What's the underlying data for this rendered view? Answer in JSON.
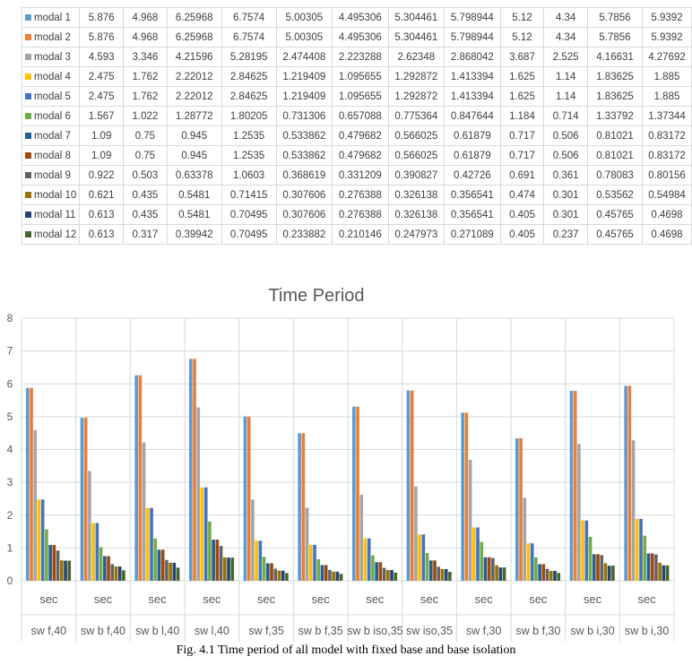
{
  "chart_data": {
    "type": "bar",
    "title": "Time Period",
    "xlabel": "",
    "ylabel": "",
    "ylim": [
      0,
      8
    ],
    "yticks": [
      "0",
      "1",
      "2",
      "3",
      "4",
      "5",
      "6",
      "7",
      "8"
    ],
    "grid": true,
    "legend": "table-left",
    "categories": [
      "sw f,40",
      "sw b f,40",
      "sw b l,40",
      "sw l,40",
      "sw  f,35",
      "sw b f,35",
      "sw b iso,35",
      "sw iso,35",
      "sw f,30",
      "sw b f,30",
      "sw b i,30",
      "sw b i,30"
    ],
    "subcategories": [
      "sec",
      "sec",
      "sec",
      "sec",
      "sec",
      "sec",
      "sec",
      "sec",
      "sec",
      "sec",
      "sec",
      "sec"
    ],
    "table_values": [
      [
        "5.876",
        "4.968",
        "6.25968",
        "6.7574",
        "5.00305",
        "4.495306",
        "5.304461",
        "5.798944",
        "5.12",
        "4.34",
        "5.7856",
        "5.9392"
      ],
      [
        "5.876",
        "4.968",
        "6.25968",
        "6.7574",
        "5.00305",
        "4.495306",
        "5.304461",
        "5.798944",
        "5.12",
        "4.34",
        "5.7856",
        "5.9392"
      ],
      [
        "4.593",
        "3.346",
        "4.21596",
        "5.28195",
        "2.474408",
        "2.223288",
        "2.62348",
        "2.868042",
        "3.687",
        "2.525",
        "4.16631",
        "4.27692"
      ],
      [
        "2.475",
        "1.762",
        "2.22012",
        "2.84625",
        "1.219409",
        "1.095655",
        "1.292872",
        "1.413394",
        "1.625",
        "1.14",
        "1.83625",
        "1.885"
      ],
      [
        "2.475",
        "1.762",
        "2.22012",
        "2.84625",
        "1.219409",
        "1.095655",
        "1.292872",
        "1.413394",
        "1.625",
        "1.14",
        "1.83625",
        "1.885"
      ],
      [
        "1.567",
        "1.022",
        "1.28772",
        "1.80205",
        "0.731306",
        "0.657088",
        "0.775364",
        "0.847644",
        "1.184",
        "0.714",
        "1.33792",
        "1.37344"
      ],
      [
        "1.09",
        "0.75",
        "0.945",
        "1.2535",
        "0.533862",
        "0.479682",
        "0.566025",
        "0.61879",
        "0.717",
        "0.506",
        "0.81021",
        "0.83172"
      ],
      [
        "1.09",
        "0.75",
        "0.945",
        "1.2535",
        "0.533862",
        "0.479682",
        "0.566025",
        "0.61879",
        "0.717",
        "0.506",
        "0.81021",
        "0.83172"
      ],
      [
        "0.922",
        "0.503",
        "0.63378",
        "1.0603",
        "0.368619",
        "0.331209",
        "0.390827",
        "0.42726",
        "0.691",
        "0.361",
        "0.78083",
        "0.80156"
      ],
      [
        "0.621",
        "0.435",
        "0.5481",
        "0.71415",
        "0.307606",
        "0.276388",
        "0.326138",
        "0.356541",
        "0.474",
        "0.301",
        "0.53562",
        "0.54984"
      ],
      [
        "0.613",
        "0.435",
        "0.5481",
        "0.70495",
        "0.307606",
        "0.276388",
        "0.326138",
        "0.356541",
        "0.405",
        "0.301",
        "0.45765",
        "0.4698"
      ],
      [
        "0.613",
        "0.317",
        "0.39942",
        "0.70495",
        "0.233882",
        "0.210146",
        "0.247973",
        "0.271089",
        "0.405",
        "0.237",
        "0.45765",
        "0.4698"
      ]
    ],
    "series": [
      {
        "name": "modal 1",
        "color": "#5b9bd5",
        "values": [
          5.876,
          4.968,
          6.25968,
          6.7574,
          5.00305,
          4.495306,
          5.304461,
          5.798944,
          5.12,
          4.34,
          5.7856,
          5.9392
        ]
      },
      {
        "name": "modal 2",
        "color": "#ed7d31",
        "values": [
          5.876,
          4.968,
          6.25968,
          6.7574,
          5.00305,
          4.495306,
          5.304461,
          5.798944,
          5.12,
          4.34,
          5.7856,
          5.9392
        ]
      },
      {
        "name": "modal 3",
        "color": "#a5a5a5",
        "values": [
          4.593,
          3.346,
          4.21596,
          5.28195,
          2.474408,
          2.223288,
          2.62348,
          2.868042,
          3.687,
          2.525,
          4.16631,
          4.27692
        ]
      },
      {
        "name": "modal 4",
        "color": "#ffc000",
        "values": [
          2.475,
          1.762,
          2.22012,
          2.84625,
          1.219409,
          1.095655,
          1.292872,
          1.413394,
          1.625,
          1.14,
          1.83625,
          1.885
        ]
      },
      {
        "name": "modal 5",
        "color": "#4472c4",
        "values": [
          2.475,
          1.762,
          2.22012,
          2.84625,
          1.219409,
          1.095655,
          1.292872,
          1.413394,
          1.625,
          1.14,
          1.83625,
          1.885
        ]
      },
      {
        "name": "modal 6",
        "color": "#70ad47",
        "values": [
          1.567,
          1.022,
          1.28772,
          1.80205,
          0.731306,
          0.657088,
          0.775364,
          0.847644,
          1.184,
          0.714,
          1.33792,
          1.37344
        ]
      },
      {
        "name": "modal 7",
        "color": "#255e91",
        "values": [
          1.09,
          0.75,
          0.945,
          1.2535,
          0.533862,
          0.479682,
          0.566025,
          0.61879,
          0.717,
          0.506,
          0.81021,
          0.83172
        ]
      },
      {
        "name": "modal 8",
        "color": "#9e480e",
        "values": [
          1.09,
          0.75,
          0.945,
          1.2535,
          0.533862,
          0.479682,
          0.566025,
          0.61879,
          0.717,
          0.506,
          0.81021,
          0.83172
        ]
      },
      {
        "name": "modal 9",
        "color": "#636363",
        "values": [
          0.922,
          0.503,
          0.63378,
          1.0603,
          0.368619,
          0.331209,
          0.390827,
          0.42726,
          0.691,
          0.361,
          0.78083,
          0.80156
        ]
      },
      {
        "name": "modal 10",
        "color": "#997300",
        "values": [
          0.621,
          0.435,
          0.5481,
          0.71415,
          0.307606,
          0.276388,
          0.326138,
          0.356541,
          0.474,
          0.301,
          0.53562,
          0.54984
        ]
      },
      {
        "name": "modal 11",
        "color": "#264478",
        "values": [
          0.613,
          0.435,
          0.5481,
          0.70495,
          0.307606,
          0.276388,
          0.326138,
          0.356541,
          0.405,
          0.301,
          0.45765,
          0.4698
        ]
      },
      {
        "name": "modal 12",
        "color": "#43682b",
        "values": [
          0.613,
          0.317,
          0.39942,
          0.70495,
          0.233882,
          0.210146,
          0.247973,
          0.271089,
          0.405,
          0.237,
          0.45765,
          0.4698
        ]
      }
    ]
  },
  "caption": "Fig. 4.1 Time period of all model with fixed base and base isolation"
}
